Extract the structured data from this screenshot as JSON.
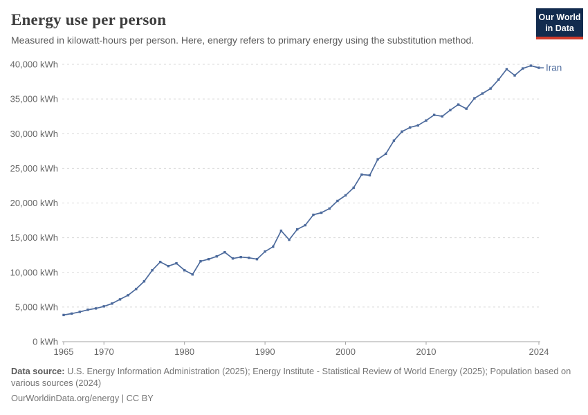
{
  "header": {
    "title": "Energy use per person",
    "subtitle": "Measured in kilowatt-hours per person. Here, energy refers to primary energy using the substitution method.",
    "logo_line1": "Our World",
    "logo_line2": "in Data"
  },
  "footer": {
    "datasource_label": "Data source:",
    "datasource_text": "U.S. Energy Information Administration (2025); Energy Institute - Statistical Review of World Energy (2025); Population based on various sources (2024)",
    "link_line": "OurWorldinData.org/energy | CC BY"
  },
  "colors": {
    "line": "#4C6A9C",
    "end_label": "#4C6A9C",
    "grid": "#d9d9d9",
    "axis": "#a3a3a3",
    "tick_text": "#666666",
    "title_text": "#3d3d3d",
    "subtitle_text": "#5b5b5b",
    "footer_text": "#757575",
    "logo_bg": "#122B4E",
    "logo_red": "#D03B2B"
  },
  "chart_data": {
    "type": "line",
    "title": "Energy use per person",
    "unit": "kWh",
    "entity": "Iran",
    "xlabel": "",
    "ylabel": "kWh per person",
    "ylim": [
      0,
      40000
    ],
    "yticks": [
      0,
      5000,
      10000,
      15000,
      20000,
      25000,
      30000,
      35000,
      40000
    ],
    "ytick_suffix": " kWh",
    "xticks": [
      1965,
      1970,
      1980,
      1990,
      2000,
      2010,
      2024
    ],
    "grid": "horizontal-dashed",
    "legend_position": "end-of-line-label",
    "series": [
      {
        "name": "Iran",
        "x": [
          1965,
          1966,
          1967,
          1968,
          1969,
          1970,
          1971,
          1972,
          1973,
          1974,
          1975,
          1976,
          1977,
          1978,
          1979,
          1980,
          1981,
          1982,
          1983,
          1984,
          1985,
          1986,
          1987,
          1988,
          1989,
          1990,
          1991,
          1992,
          1993,
          1994,
          1995,
          1996,
          1997,
          1998,
          1999,
          2000,
          2001,
          2002,
          2003,
          2004,
          2005,
          2006,
          2007,
          2008,
          2009,
          2010,
          2011,
          2012,
          2013,
          2014,
          2015,
          2016,
          2017,
          2018,
          2019,
          2020,
          2021,
          2022,
          2023,
          2024
        ],
        "values": [
          3850,
          4050,
          4300,
          4600,
          4800,
          5100,
          5500,
          6100,
          6700,
          7600,
          8700,
          10300,
          11500,
          10900,
          11300,
          10300,
          9700,
          11600,
          11900,
          12300,
          12900,
          12000,
          12200,
          12100,
          11900,
          13000,
          13700,
          16000,
          14700,
          16200,
          16800,
          18300,
          18600,
          19200,
          20300,
          21100,
          22200,
          24100,
          24000,
          26300,
          27100,
          29000,
          30300,
          30900,
          31200,
          31900,
          32700,
          32500,
          33400,
          34200,
          33600,
          35100,
          35800,
          36500,
          37800,
          39300,
          38400,
          39400,
          39800,
          39500
        ]
      }
    ]
  }
}
